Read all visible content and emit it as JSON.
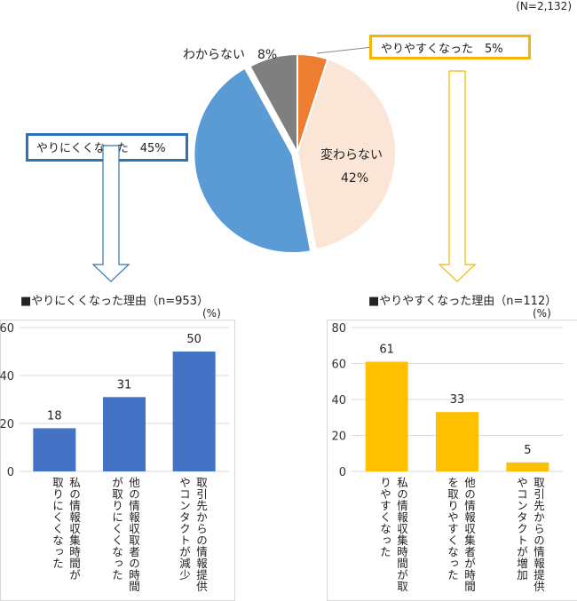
{
  "sample_note": "(N=2,132)",
  "pie": {
    "slices": [
      {
        "label": "やりやすくなった",
        "value": 5,
        "color": "#ED7D31"
      },
      {
        "label": "変わらない",
        "value": 42,
        "color": "#FBE5D6"
      },
      {
        "label": "やりにくくなった",
        "value": 45,
        "color": "#5B9BD5"
      },
      {
        "label": "わからない",
        "value": 8,
        "color": "#7F7F7F"
      }
    ],
    "labels": {
      "unknown": "わからない　8%",
      "unchanged_name": "変わらない",
      "unchanged_pct": "42%"
    }
  },
  "callouts": {
    "easier": "やりやすくなった　5%",
    "harder": "やりにくくなった　45%"
  },
  "chart_data": [
    {
      "type": "bar",
      "title": "■やりにくくなった理由（n=953）",
      "unit": "(%)",
      "categories": [
        "私の情報収集時間が\n取りにくくなった",
        "他の情報収取者の時間\nが取りにくくなった",
        "取引先からの情報提供\nやコンタクトが減少"
      ],
      "values": [
        18,
        31,
        50
      ],
      "ylim": [
        0,
        60
      ],
      "yticks": [
        0,
        20,
        40,
        60
      ],
      "color": "#4472C4"
    },
    {
      "type": "bar",
      "title": "■やりやすくなった理由（n=112）",
      "unit": "(%)",
      "categories": [
        "私の情報収集時間が取\nりやすくなった",
        "他の情報収集者が時間\nを取りやすくなった",
        "取引先からの情報提供\nやコンタクトが増加"
      ],
      "values": [
        61,
        33,
        5
      ],
      "ylim": [
        0,
        80
      ],
      "yticks": [
        0,
        20,
        40,
        60,
        80
      ],
      "color": "#FFC000"
    }
  ]
}
